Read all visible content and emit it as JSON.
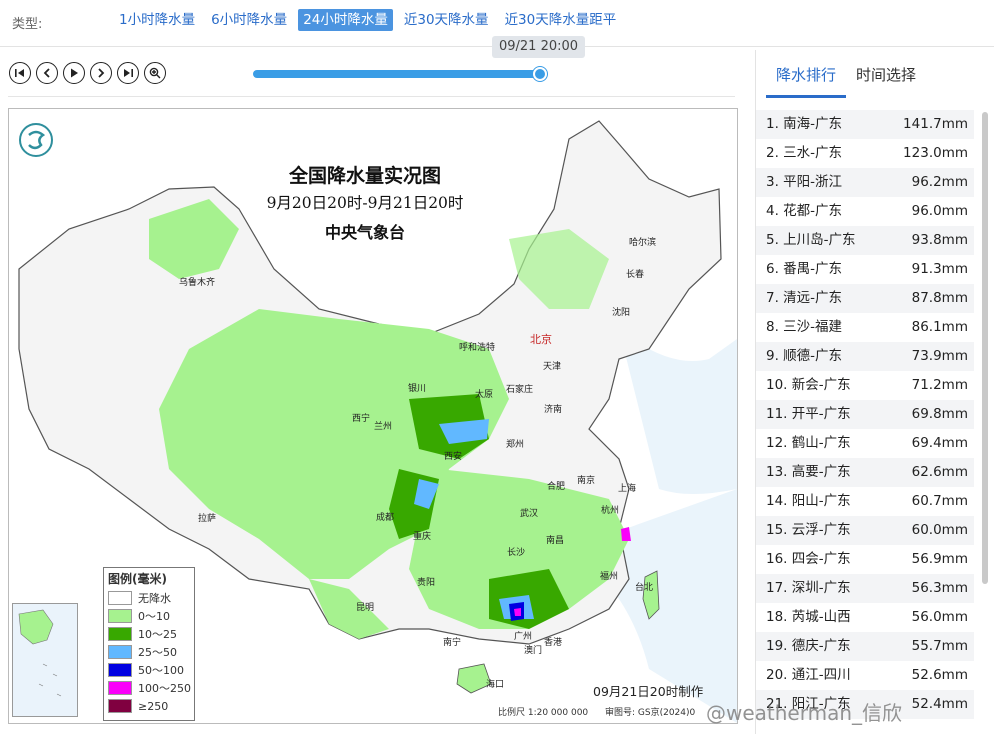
{
  "typebar": {
    "label": "类型:",
    "tabs": [
      "1小时降水量",
      "6小时降水量",
      "24小时降水量",
      "近30天降水量",
      "近30天降水量距平"
    ],
    "active_index": 2
  },
  "player": {
    "time_label": "09/21 20:00",
    "progress": 1.0,
    "buttons": [
      "first-icon",
      "prev-icon",
      "play-icon",
      "next-icon",
      "last-icon",
      "zoom-in-icon"
    ]
  },
  "map": {
    "title": "全国降水量实况图",
    "period": "9月20日20时-9月21日20时",
    "agency": "中央气象台",
    "made_time": "09月21日20时制作",
    "scale": "比例尺 1:20 000 000",
    "review": "审图号: GS京(2024)0",
    "capital": "北京",
    "cities": [
      "乌鲁木齐",
      "哈尔滨",
      "长春",
      "沈阳",
      "呼和浩特",
      "天津",
      "石家庄",
      "太原",
      "银川",
      "济南",
      "西宁",
      "兰州",
      "郑州",
      "西安",
      "合肥",
      "南京",
      "上海",
      "成都",
      "武汉",
      "杭州",
      "拉萨",
      "重庆",
      "南昌",
      "长沙",
      "福州",
      "台北",
      "贵阳",
      "昆明",
      "南宁",
      "广州",
      "香港",
      "澳门",
      "海口"
    ],
    "legend": {
      "title": "图例(毫米)",
      "items": [
        {
          "label": "无降水",
          "color": "#ffffff"
        },
        {
          "label": "0～10",
          "color": "#a6f28f"
        },
        {
          "label": "10～25",
          "color": "#38a800"
        },
        {
          "label": "25～50",
          "color": "#61b8ff"
        },
        {
          "label": "50～100",
          "color": "#0000e1"
        },
        {
          "label": "100～250",
          "color": "#fa00fa"
        },
        {
          "label": "≥250",
          "color": "#800040"
        }
      ]
    }
  },
  "panel": {
    "tabs": [
      "降水排行",
      "时间选择"
    ],
    "active_tab": 0,
    "ranking": [
      {
        "name": "1. 南海-广东",
        "value": "141.7mm"
      },
      {
        "name": "2. 三水-广东",
        "value": "123.0mm"
      },
      {
        "name": "3. 平阳-浙江",
        "value": "96.2mm"
      },
      {
        "name": "4. 花都-广东",
        "value": "96.0mm"
      },
      {
        "name": "5. 上川岛-广东",
        "value": "93.8mm"
      },
      {
        "name": "6. 番禺-广东",
        "value": "91.3mm"
      },
      {
        "name": "7. 清远-广东",
        "value": "87.8mm"
      },
      {
        "name": "8. 三沙-福建",
        "value": "86.1mm"
      },
      {
        "name": "9. 顺德-广东",
        "value": "73.9mm"
      },
      {
        "name": "10. 新会-广东",
        "value": "71.2mm"
      },
      {
        "name": "11. 开平-广东",
        "value": "69.8mm"
      },
      {
        "name": "12. 鹤山-广东",
        "value": "69.4mm"
      },
      {
        "name": "13. 高要-广东",
        "value": "62.6mm"
      },
      {
        "name": "14. 阳山-广东",
        "value": "60.7mm"
      },
      {
        "name": "15. 云浮-广东",
        "value": "60.0mm"
      },
      {
        "name": "16. 四会-广东",
        "value": "56.9mm"
      },
      {
        "name": "17. 深圳-广东",
        "value": "56.3mm"
      },
      {
        "name": "18. 芮城-山西",
        "value": "56.0mm"
      },
      {
        "name": "19. 德庆-广东",
        "value": "55.7mm"
      },
      {
        "name": "20. 通江-四川",
        "value": "52.6mm"
      },
      {
        "name": "21. 阳江-广东",
        "value": "52.4mm"
      }
    ]
  },
  "watermark": "@weatherman_信欣"
}
